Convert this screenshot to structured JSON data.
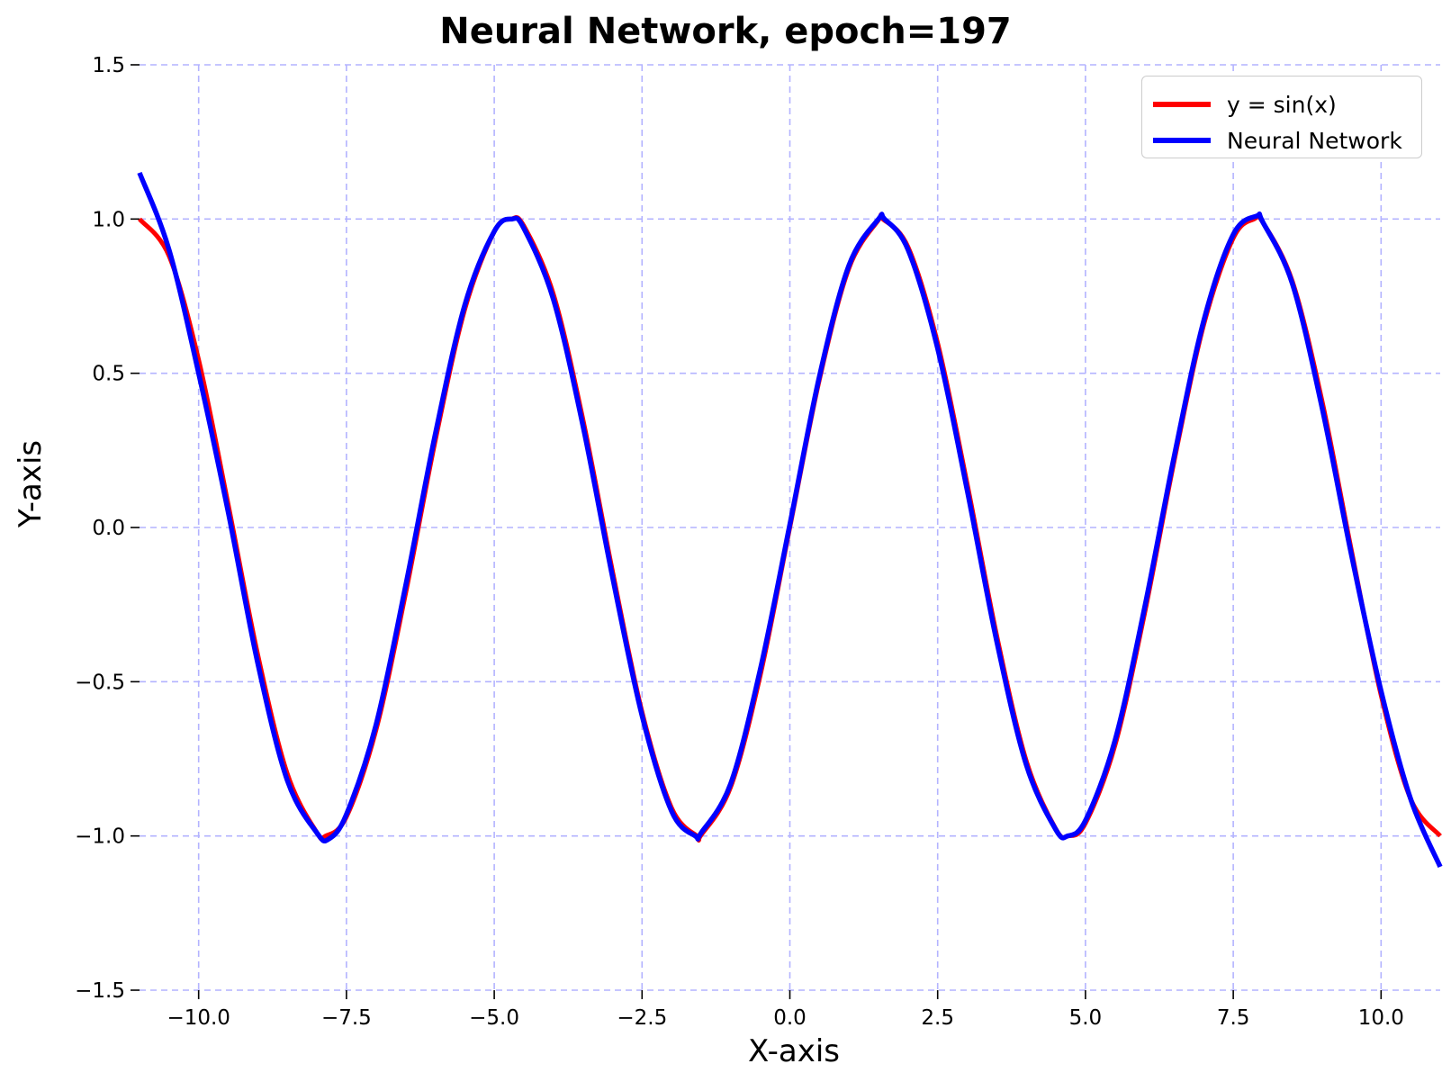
{
  "chart_data": {
    "type": "line",
    "title": "Neural Network, epoch=197",
    "xlabel": "X-axis",
    "ylabel": "Y-axis",
    "xlim": [
      -11.0,
      11.0
    ],
    "ylim": [
      -1.5,
      1.5
    ],
    "xticks": [
      -10.0,
      -7.5,
      -5.0,
      -2.5,
      0.0,
      2.5,
      5.0,
      7.5,
      10.0
    ],
    "xtick_labels": [
      "−10.0",
      "−7.5",
      "−5.0",
      "−2.5",
      "0.0",
      "2.5",
      "5.0",
      "7.5",
      "10.0"
    ],
    "yticks": [
      -1.5,
      -1.0,
      -0.5,
      0.0,
      0.5,
      1.0,
      1.5
    ],
    "ytick_labels": [
      "−1.5",
      "−1.0",
      "−0.5",
      "0.0",
      "0.5",
      "1.0",
      "1.5"
    ],
    "grid": true,
    "grid_style": "dashed",
    "grid_color": "#b3b3ff",
    "legend_position": "top-right",
    "series": [
      {
        "name": "y = sin(x)",
        "color": "#ff0000",
        "x": [
          -11.0,
          -10.5,
          -10.0,
          -9.5,
          -9.0,
          -8.5,
          -8.0,
          -7.854,
          -7.5,
          -7.0,
          -6.5,
          -6.0,
          -5.5,
          -5.0,
          -4.712,
          -4.5,
          -4.0,
          -3.5,
          -3.0,
          -2.5,
          -2.0,
          -1.571,
          -1.5,
          -1.0,
          -0.5,
          0.0,
          0.5,
          1.0,
          1.5,
          1.571,
          2.0,
          2.5,
          3.0,
          3.5,
          4.0,
          4.5,
          4.712,
          5.0,
          5.5,
          6.0,
          6.5,
          7.0,
          7.5,
          7.854,
          8.0,
          8.5,
          9.0,
          9.5,
          10.0,
          10.5,
          11.0
        ],
        "y": [
          1.0,
          0.88,
          0.544,
          0.075,
          -0.412,
          -0.798,
          -0.989,
          -1.0,
          -0.938,
          -0.657,
          -0.215,
          0.279,
          0.706,
          0.959,
          1.0,
          0.978,
          0.757,
          0.351,
          -0.141,
          -0.598,
          -0.909,
          -1.0,
          -0.997,
          -0.841,
          -0.479,
          0.0,
          0.479,
          0.841,
          0.997,
          1.0,
          0.909,
          0.598,
          0.141,
          -0.351,
          -0.757,
          -0.978,
          -1.0,
          -0.959,
          -0.706,
          -0.279,
          0.215,
          0.657,
          0.938,
          1.0,
          0.989,
          0.798,
          0.412,
          -0.075,
          -0.544,
          -0.88,
          -1.0
        ]
      },
      {
        "name": "Neural Network",
        "color": "#0000ff",
        "x": [
          -11.0,
          -10.5,
          -10.0,
          -9.5,
          -9.0,
          -8.5,
          -8.0,
          -7.8,
          -7.5,
          -7.0,
          -6.5,
          -6.0,
          -5.5,
          -5.0,
          -4.7,
          -4.5,
          -4.0,
          -3.5,
          -3.0,
          -2.5,
          -2.0,
          -1.6,
          -1.5,
          -1.0,
          -0.5,
          0.0,
          0.5,
          1.0,
          1.5,
          1.6,
          2.0,
          2.5,
          3.0,
          3.5,
          4.0,
          4.5,
          4.7,
          5.0,
          5.5,
          6.0,
          6.5,
          7.0,
          7.5,
          7.9,
          8.0,
          8.5,
          9.0,
          9.5,
          10.0,
          10.5,
          11.0
        ],
        "y": [
          1.15,
          0.9,
          0.5,
          0.05,
          -0.44,
          -0.82,
          -0.99,
          -1.01,
          -0.93,
          -0.64,
          -0.19,
          0.3,
          0.72,
          0.96,
          1.0,
          0.97,
          0.74,
          0.33,
          -0.16,
          -0.61,
          -0.92,
          -1.0,
          -0.99,
          -0.83,
          -0.46,
          0.01,
          0.49,
          0.85,
          1.0,
          1.0,
          0.9,
          0.58,
          0.12,
          -0.37,
          -0.77,
          -0.98,
          -1.0,
          -0.95,
          -0.69,
          -0.26,
          0.23,
          0.67,
          0.95,
          1.01,
          0.99,
          0.79,
          0.39,
          -0.09,
          -0.53,
          -0.88,
          -1.1
        ]
      }
    ]
  }
}
